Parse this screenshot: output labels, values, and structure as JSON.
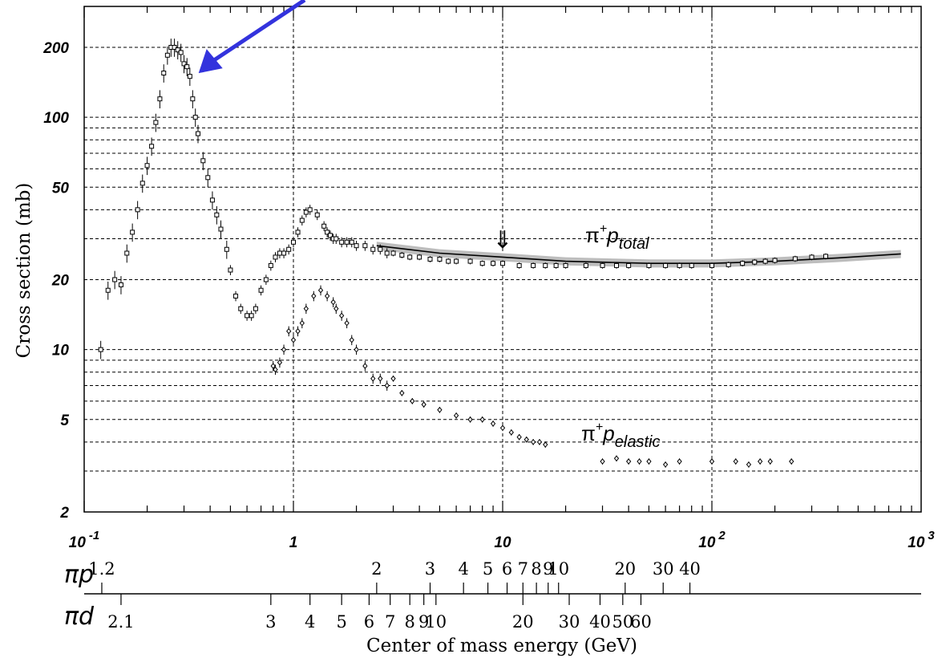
{
  "chart_data": {
    "type": "scatter",
    "title": "",
    "xlabel": "Center of mass energy (GeV)",
    "ylabel": "Cross section (mb)",
    "x_scale": "log",
    "y_scale": "log",
    "xlim": [
      0.1,
      1000
    ],
    "ylim": [
      2,
      300
    ],
    "grid": true,
    "x_ticks": [
      {
        "value": 0.1,
        "base": "10",
        "exp": "-1"
      },
      {
        "value": 1,
        "base": "1",
        "exp": ""
      },
      {
        "value": 10,
        "base": "10",
        "exp": ""
      },
      {
        "value": 100,
        "base": "10",
        "exp": "2"
      },
      {
        "value": 1000,
        "base": "10",
        "exp": "3"
      }
    ],
    "y_ticks": [
      {
        "value": 2,
        "label": "2"
      },
      {
        "value": 5,
        "label": "5"
      },
      {
        "value": 10,
        "label": "10"
      },
      {
        "value": 20,
        "label": "20"
      },
      {
        "value": 50,
        "label": "50"
      },
      {
        "value": 100,
        "label": "100"
      },
      {
        "value": 200,
        "label": "200"
      }
    ],
    "secondary_axes": [
      {
        "name": "πp",
        "ticks": [
          {
            "label": "1.2",
            "x": 0.1214
          },
          {
            "label": "2",
            "x": 2.5
          },
          {
            "label": "3",
            "x": 4.5
          },
          {
            "label": "4",
            "x": 6.5
          },
          {
            "label": "5",
            "x": 8.5
          },
          {
            "label": "6",
            "x": 10.5
          },
          {
            "label": "7",
            "x": 12.5
          },
          {
            "label": "8",
            "x": 14.5
          },
          {
            "label": "9",
            "x": 16.5
          },
          {
            "label": "10",
            "x": 18.5
          },
          {
            "label": "20",
            "x": 38.5
          },
          {
            "label": "30",
            "x": 58.5
          },
          {
            "label": "40",
            "x": 78.5
          }
        ]
      },
      {
        "name": "πd",
        "ticks": [
          {
            "label": "2.1",
            "x": 0.15
          },
          {
            "label": "3",
            "x": 0.78
          },
          {
            "label": "4",
            "x": 1.2
          },
          {
            "label": "5",
            "x": 1.7
          },
          {
            "label": "6",
            "x": 2.3
          },
          {
            "label": "7",
            "x": 2.9
          },
          {
            "label": "8",
            "x": 3.6
          },
          {
            "label": "9",
            "x": 4.2
          },
          {
            "label": "10",
            "x": 4.8
          },
          {
            "label": "20",
            "x": 12.5
          },
          {
            "label": "30",
            "x": 20.8
          },
          {
            "label": "40",
            "x": 29.2
          },
          {
            "label": "50",
            "x": 37.5
          },
          {
            "label": "60",
            "x": 45.8
          }
        ]
      }
    ],
    "series": [
      {
        "name": "π⁺p total",
        "label_base": "π",
        "label_sup": "+",
        "label_p": "p",
        "label_sub": "total",
        "marker": "square",
        "x": [
          0.12,
          0.13,
          0.14,
          0.15,
          0.16,
          0.17,
          0.18,
          0.19,
          0.2,
          0.21,
          0.22,
          0.23,
          0.24,
          0.25,
          0.26,
          0.27,
          0.28,
          0.29,
          0.3,
          0.31,
          0.32,
          0.33,
          0.34,
          0.35,
          0.37,
          0.39,
          0.41,
          0.43,
          0.45,
          0.48,
          0.5,
          0.53,
          0.56,
          0.6,
          0.63,
          0.66,
          0.7,
          0.74,
          0.78,
          0.82,
          0.86,
          0.9,
          0.95,
          1.0,
          1.05,
          1.1,
          1.15,
          1.2,
          1.3,
          1.4,
          1.45,
          1.5,
          1.55,
          1.6,
          1.7,
          1.8,
          1.9,
          2.0,
          2.2,
          2.4,
          2.6,
          2.8,
          3.0,
          3.3,
          3.6,
          4.0,
          4.5,
          5.0,
          5.5,
          6.0,
          7.0,
          8.0,
          9.0,
          10,
          12,
          14,
          16,
          18,
          20,
          25,
          30,
          35,
          40,
          50,
          60,
          70,
          80,
          100,
          120,
          140,
          160,
          180,
          200,
          250,
          300,
          350
        ],
        "y": [
          10,
          18,
          20,
          19,
          26,
          32,
          40,
          52,
          62,
          75,
          95,
          120,
          155,
          185,
          200,
          200,
          195,
          190,
          170,
          165,
          150,
          120,
          100,
          85,
          65,
          55,
          44,
          38,
          33,
          27,
          22,
          17,
          15,
          14,
          14,
          15,
          18,
          20,
          23,
          25,
          26,
          26,
          27,
          29,
          32,
          36,
          39,
          40,
          38,
          34,
          32,
          31,
          30,
          30,
          29,
          29,
          29,
          28,
          28,
          27,
          27,
          26,
          26,
          25.5,
          25,
          25,
          24.5,
          24.5,
          24,
          24,
          24,
          23.5,
          23.5,
          23.5,
          23,
          23,
          23,
          23,
          23,
          23,
          23,
          23,
          23,
          23,
          23,
          23,
          23,
          23,
          23.2,
          23.5,
          23.8,
          24,
          24.2,
          24.6,
          25,
          25.2
        ]
      },
      {
        "name": "π⁺p elastic",
        "label_base": "π",
        "label_sup": "+",
        "label_p": "p",
        "label_sub": "elastic",
        "marker": "diamond",
        "x": [
          0.8,
          0.82,
          0.86,
          0.9,
          0.95,
          1.0,
          1.05,
          1.1,
          1.15,
          1.25,
          1.35,
          1.45,
          1.55,
          1.6,
          1.7,
          1.8,
          1.9,
          2.0,
          2.2,
          2.4,
          2.6,
          2.8,
          3.0,
          3.3,
          3.7,
          4.2,
          5.0,
          6.0,
          7.0,
          8.0,
          9.0,
          10,
          11,
          12,
          13,
          14,
          15,
          16,
          30,
          35,
          40,
          45,
          50,
          60,
          70,
          100,
          130,
          150,
          170,
          190,
          240
        ],
        "y": [
          8.5,
          8.2,
          8.8,
          10,
          12,
          11,
          12,
          13,
          15,
          17,
          18,
          17,
          16,
          15,
          14,
          13,
          11,
          10,
          8.5,
          7.5,
          7.5,
          7.0,
          7.5,
          6.5,
          6.0,
          5.8,
          5.5,
          5.2,
          5.0,
          5.0,
          4.8,
          4.6,
          4.4,
          4.2,
          4.1,
          4.0,
          4.0,
          3.9,
          3.3,
          3.4,
          3.3,
          3.3,
          3.3,
          3.2,
          3.3,
          3.3,
          3.3,
          3.2,
          3.3,
          3.3,
          3.3
        ]
      }
    ],
    "fit_curve": {
      "x": [
        2.5,
        5,
        10,
        20,
        50,
        100,
        200,
        400,
        800
      ],
      "y": [
        28,
        26,
        25,
        24,
        23.5,
        23.5,
        24,
        24.8,
        25.8
      ]
    },
    "annotations": [
      {
        "type": "arrow",
        "symbol": "⇓",
        "at_x": 10,
        "at_y": 27
      },
      {
        "type": "arrow",
        "color": "#3333dd",
        "points_to_x": 0.34,
        "points_to_y": 150
      }
    ]
  }
}
